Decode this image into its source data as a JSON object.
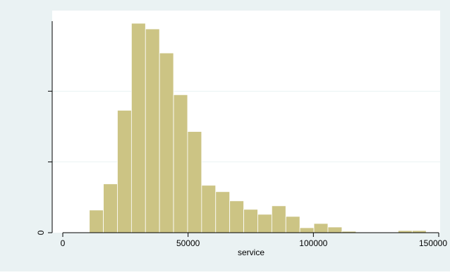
{
  "chart_data": {
    "type": "bar",
    "title": "",
    "xlabel": "service",
    "ylabel": "",
    "xlim": [
      -5000,
      150000
    ],
    "ylim": [
      0,
      2.97e-05
    ],
    "x_ticks": [
      0,
      50000,
      100000,
      150000
    ],
    "x_tick_labels": [
      "0",
      "50000",
      "100000",
      "150000"
    ],
    "y_ticks": [
      0,
      1e-05,
      2e-05
    ],
    "y_tick_labels": [
      "0",
      "",
      ""
    ],
    "bin_width": 5600,
    "bins": [
      {
        "start": 10600,
        "value": 3.2e-06
      },
      {
        "start": 16200,
        "value": 6.9e-06
      },
      {
        "start": 21800,
        "value": 1.73e-05
      },
      {
        "start": 27400,
        "value": 2.96e-05
      },
      {
        "start": 33000,
        "value": 2.88e-05
      },
      {
        "start": 38600,
        "value": 2.54e-05
      },
      {
        "start": 44200,
        "value": 1.95e-05
      },
      {
        "start": 49800,
        "value": 1.43e-05
      },
      {
        "start": 55400,
        "value": 6.7e-06
      },
      {
        "start": 61000,
        "value": 5.8e-06
      },
      {
        "start": 66600,
        "value": 4.5e-06
      },
      {
        "start": 72200,
        "value": 3.3e-06
      },
      {
        "start": 77800,
        "value": 2.6e-06
      },
      {
        "start": 83400,
        "value": 3.8e-06
      },
      {
        "start": 89000,
        "value": 2.3e-06
      },
      {
        "start": 94600,
        "value": 7e-07
      },
      {
        "start": 100200,
        "value": 1.3e-06
      },
      {
        "start": 105800,
        "value": 8e-07
      },
      {
        "start": 111400,
        "value": 2e-07
      },
      {
        "start": 117000,
        "value": 0
      },
      {
        "start": 122600,
        "value": 0
      },
      {
        "start": 128200,
        "value": 0
      },
      {
        "start": 133800,
        "value": 3e-07
      },
      {
        "start": 139400,
        "value": 3e-07
      }
    ],
    "grid": true,
    "colors": {
      "bar_fill": "#ccc484",
      "bar_stroke": "#ffffff",
      "outer_background": "#eaf2f3",
      "plot_background": "#ffffff",
      "grid": "#eaf2f3",
      "axis": "#000000"
    }
  }
}
